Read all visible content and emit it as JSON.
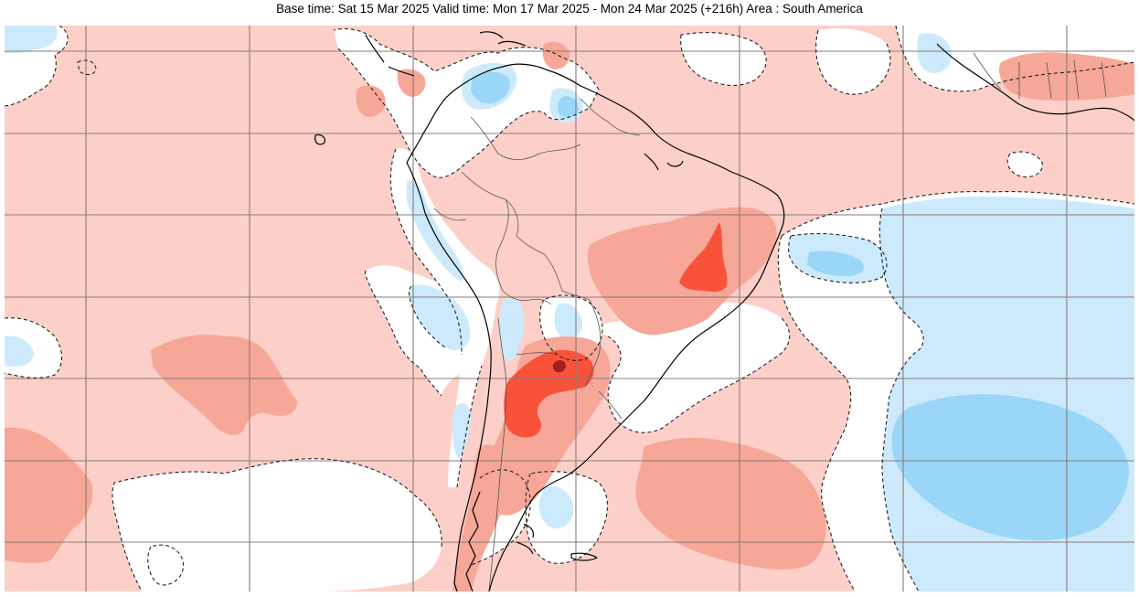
{
  "title": "Base time: Sat 15 Mar 2025 Valid time: Mon 17 Mar 2025 - Mon 24 Mar 2025 (+216h) Area : South America",
  "map": {
    "area": "South America",
    "field_type": "anomaly",
    "zero_contour_style": "dashed",
    "colors": {
      "ocean_background": "#fcd0c8",
      "warm_1": "#fcd0c8",
      "warm_2": "#f6a797",
      "warm_3": "#f9523a",
      "warm_4": "#a3211c",
      "neutral": "#ffffff",
      "cool_1": "#cdeafc",
      "cool_2": "#9ad6f7",
      "grid": "#8a7b78",
      "coast": "#000000",
      "border": "#555555"
    }
  }
}
